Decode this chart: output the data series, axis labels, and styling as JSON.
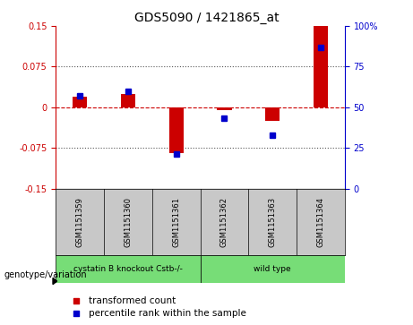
{
  "title": "GDS5090 / 1421865_at",
  "samples": [
    "GSM1151359",
    "GSM1151360",
    "GSM1151361",
    "GSM1151362",
    "GSM1151363",
    "GSM1151364"
  ],
  "transformed_count": [
    0.02,
    0.025,
    -0.085,
    -0.005,
    -0.025,
    0.15
  ],
  "percentile_rank": [
    57,
    60,
    21,
    43,
    33,
    87
  ],
  "ylim_left": [
    -0.15,
    0.15
  ],
  "ylim_right": [
    0,
    100
  ],
  "yticks_left": [
    -0.15,
    -0.075,
    0,
    0.075,
    0.15
  ],
  "yticks_right": [
    0,
    25,
    50,
    75,
    100
  ],
  "ytick_labels_left": [
    "-0.15",
    "-0.075",
    "0",
    "0.075",
    "0.15"
  ],
  "ytick_labels_right": [
    "0",
    "25",
    "50",
    "75",
    "100%"
  ],
  "hlines_dotted": [
    0.075,
    -0.075
  ],
  "zero_line_val": 0,
  "group1_label": "cystatin B knockout Cstb-/-",
  "group2_label": "wild type",
  "group1_indices": [
    0,
    1,
    2
  ],
  "group2_indices": [
    3,
    4,
    5
  ],
  "group_color": "#77DD77",
  "bar_color": "#CC0000",
  "dot_color": "#0000CC",
  "bar_width": 0.3,
  "dot_size": 30,
  "zero_line_color": "#CC0000",
  "dotted_line_color": "#555555",
  "legend_label_red": "transformed count",
  "legend_label_blue": "percentile rank within the sample",
  "genotype_label": "genotype/variation",
  "plot_bg": "#FFFFFF",
  "sample_box_color": "#C8C8C8"
}
